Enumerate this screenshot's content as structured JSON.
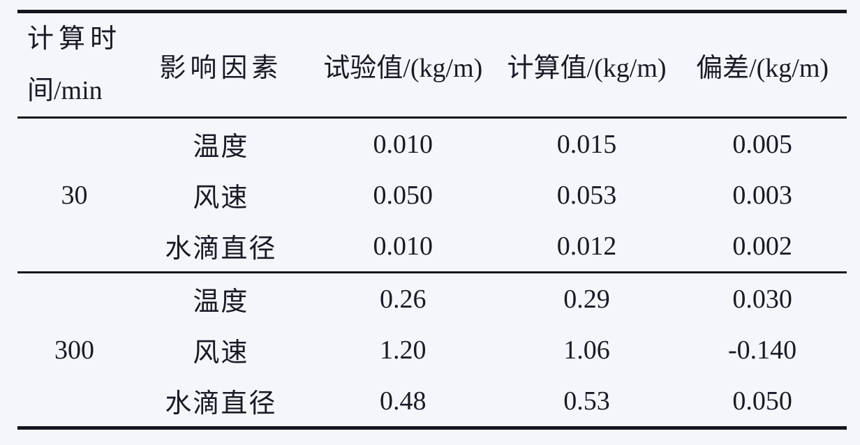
{
  "table": {
    "headers": {
      "time": "计算时间/min",
      "time_line1": "计算时",
      "time_line2": "间/min",
      "factor": "影响因素",
      "test": "试验值/(kg/m)",
      "calc": "计算值/(kg/m)",
      "deviation": "偏差/(kg/m)"
    },
    "groups": [
      {
        "time": "30",
        "rows": [
          {
            "factor": "温度",
            "test": "0.010",
            "calc": "0.015",
            "deviation": "0.005"
          },
          {
            "factor": "风速",
            "test": "0.050",
            "calc": "0.053",
            "deviation": "0.003"
          },
          {
            "factor": "水滴直径",
            "test": "0.010",
            "calc": "0.012",
            "deviation": "0.002"
          }
        ]
      },
      {
        "time": "300",
        "rows": [
          {
            "factor": "温度",
            "test": "0.26",
            "calc": "0.29",
            "deviation": "0.030"
          },
          {
            "factor": "风速",
            "test": "1.20",
            "calc": "1.06",
            "deviation": "-0.140"
          },
          {
            "factor": "水滴直径",
            "test": "0.48",
            "calc": "0.53",
            "deviation": "0.050"
          }
        ]
      }
    ],
    "colors": {
      "background": "#f4f6f9",
      "text": "#1a1a26",
      "rule": "#14141c"
    }
  }
}
